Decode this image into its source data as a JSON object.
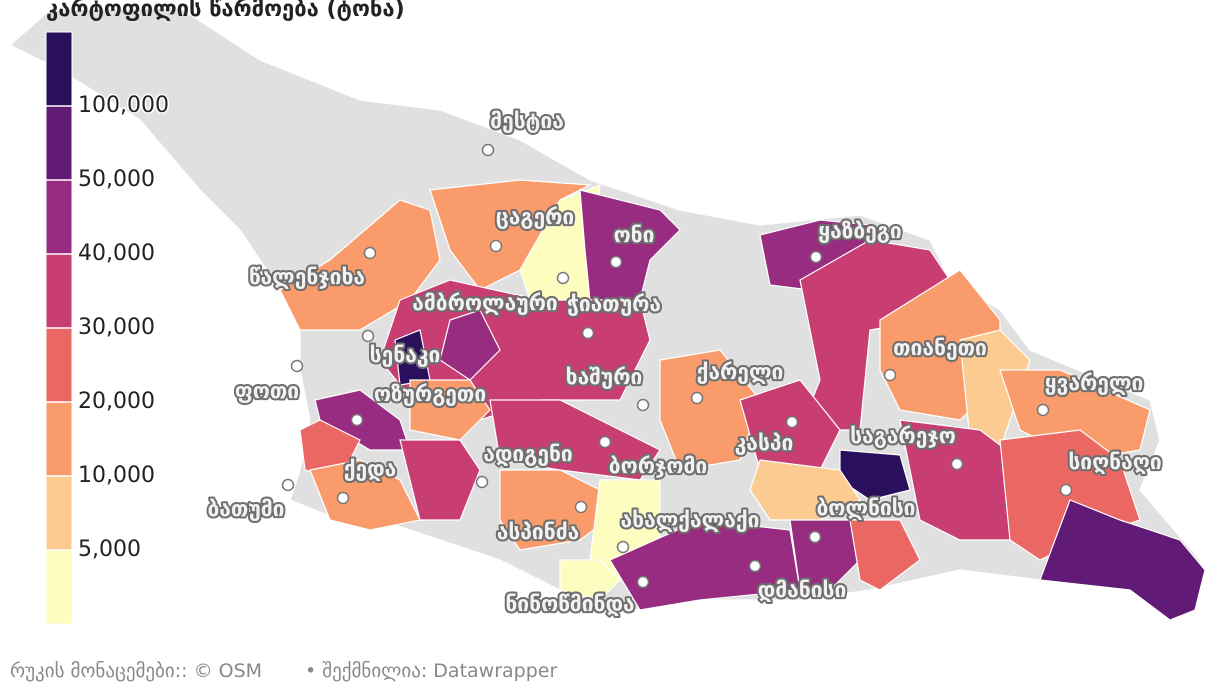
{
  "header": {
    "title": "კარტოფილის წარმოება (ტონა)"
  },
  "legend": {
    "colors": [
      "#2a0f5c",
      "#611b77",
      "#972c80",
      "#c93e72",
      "#ea6763",
      "#f99b6a",
      "#fccb91",
      "#fcfdbf"
    ],
    "ticks": [
      {
        "value": 100000,
        "label": "100,000"
      },
      {
        "value": 50000,
        "label": "50,000"
      },
      {
        "value": 40000,
        "label": "40,000"
      },
      {
        "value": 30000,
        "label": "30,000"
      },
      {
        "value": 20000,
        "label": "20,000"
      },
      {
        "value": 10000,
        "label": "10,000"
      },
      {
        "value": 5000,
        "label": "5,000"
      }
    ]
  },
  "cities": [
    "მესტია",
    "ცაგერი",
    "ონი",
    "ყაზბეგი",
    "წალენჯიხა",
    "ამბროლაური",
    "ჭიათურა",
    "სენაკი",
    "თიანეთი",
    "ფოთი",
    "ოზურგეთი",
    "ხაშური",
    "ქარელი",
    "ყვარელი",
    "კასპი",
    "საგარეჯო",
    "ადიგენი",
    "ბორჯომი",
    "სიღნაღი",
    "ქედა",
    "ბათუმი",
    "ახალქალაქი",
    "ბოლნისი",
    "ასპინძა",
    "დმანისი",
    "ნინოწმინდა"
  ],
  "footer": {
    "source": "რუკის მონაცემები:: © OSM",
    "credit": "• შექმნილია: Datawrapper"
  }
}
